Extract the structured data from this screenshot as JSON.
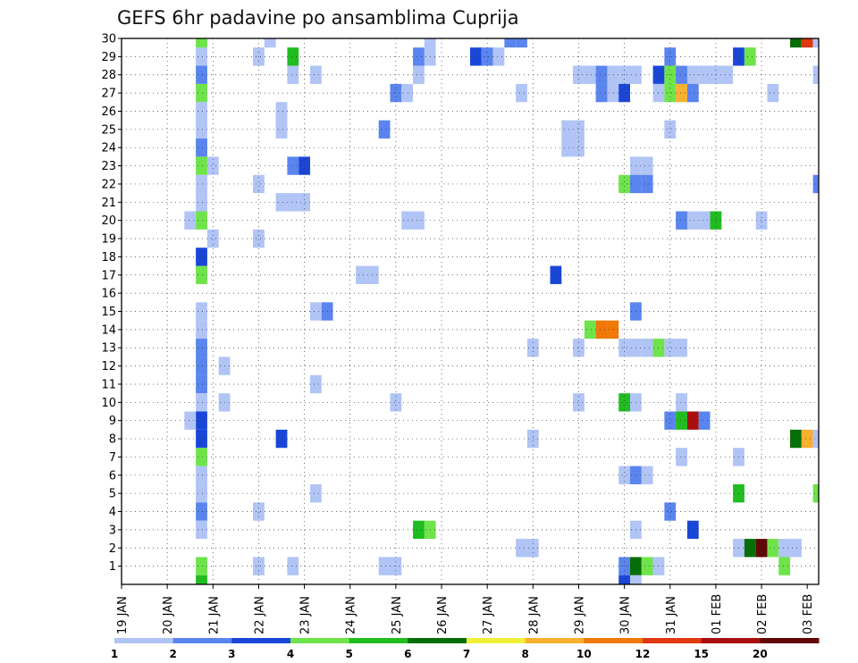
{
  "chart_data": {
    "type": "heatmap",
    "title": "GEFS 6hr padavine po ansamblima Cuprija",
    "xlabel": "",
    "ylabel": "",
    "x_tick_labels": [
      "19 JAN",
      "20 JAN",
      "21 JAN",
      "22 JAN",
      "23 JAN",
      "24 JAN",
      "25 JAN",
      "26 JAN",
      "27 JAN",
      "28 JAN",
      "29 JAN",
      "30 JAN",
      "31 JAN",
      "01 FEB",
      "02 FEB",
      "03 FEB"
    ],
    "y_tick_labels": [
      "1",
      "2",
      "3",
      "4",
      "5",
      "6",
      "7",
      "8",
      "9",
      "10",
      "11",
      "12",
      "13",
      "14",
      "15",
      "16",
      "17",
      "18",
      "19",
      "20",
      "21",
      "22",
      "23",
      "24",
      "25",
      "26",
      "27",
      "28",
      "29",
      "30"
    ],
    "x_unit": "6-hour steps from 19 JAN 00Z (4 per day)",
    "y_range": [
      0,
      30
    ],
    "grid": true,
    "colorbar": {
      "thresholds": [
        "1",
        "2",
        "3",
        "4",
        "5",
        "6",
        "7",
        "8",
        "10",
        "12",
        "15",
        "20"
      ],
      "colors": [
        "#b0c4f5",
        "#5a84ee",
        "#1a46d8",
        "#6ee44a",
        "#20bc20",
        "#066e06",
        "#f0f03a",
        "#f8b030",
        "#f07808",
        "#e03810",
        "#a81010",
        "#600808"
      ]
    },
    "cells": [
      [
        7,
        30,
        3
      ],
      [
        7,
        29,
        0
      ],
      [
        7,
        28,
        1
      ],
      [
        7,
        27,
        3
      ],
      [
        7,
        26,
        0
      ],
      [
        7,
        25,
        0
      ],
      [
        7,
        24,
        1
      ],
      [
        7,
        23,
        3
      ],
      [
        7,
        22,
        0
      ],
      [
        7,
        21,
        0
      ],
      [
        7,
        20,
        3
      ],
      [
        7,
        17,
        3
      ],
      [
        7,
        18,
        2
      ],
      [
        7,
        15,
        0
      ],
      [
        7,
        14,
        0
      ],
      [
        7,
        13,
        1
      ],
      [
        7,
        12,
        1
      ],
      [
        7,
        11,
        1
      ],
      [
        7,
        10,
        0
      ],
      [
        7,
        9,
        2
      ],
      [
        7,
        8,
        2
      ],
      [
        7,
        7,
        3
      ],
      [
        7,
        6,
        0
      ],
      [
        7,
        5,
        0
      ],
      [
        7,
        4,
        1
      ],
      [
        7,
        3,
        0
      ],
      [
        7,
        1,
        3
      ],
      [
        7,
        0,
        4
      ],
      [
        6,
        20,
        0
      ],
      [
        6,
        9,
        0
      ],
      [
        8,
        23,
        0
      ],
      [
        8,
        19,
        0
      ],
      [
        9,
        12,
        0
      ],
      [
        9,
        10,
        0
      ],
      [
        12,
        29,
        0
      ],
      [
        12,
        22,
        0
      ],
      [
        12,
        19,
        0
      ],
      [
        12,
        4,
        0
      ],
      [
        12,
        1,
        0
      ],
      [
        13,
        30,
        0
      ],
      [
        14,
        26,
        0
      ],
      [
        14,
        25,
        0
      ],
      [
        14,
        21,
        0
      ],
      [
        14,
        8,
        2
      ],
      [
        15,
        29,
        4
      ],
      [
        15,
        28,
        0
      ],
      [
        15,
        23,
        1
      ],
      [
        15,
        21,
        0
      ],
      [
        15,
        1,
        0
      ],
      [
        16,
        23,
        2
      ],
      [
        16,
        21,
        0
      ],
      [
        17,
        28,
        0
      ],
      [
        17,
        15,
        0
      ],
      [
        17,
        11,
        0
      ],
      [
        17,
        5,
        0
      ],
      [
        18,
        15,
        1
      ],
      [
        21,
        17,
        0
      ],
      [
        22,
        17,
        0
      ],
      [
        23,
        25,
        1
      ],
      [
        23,
        1,
        0
      ],
      [
        24,
        27,
        1
      ],
      [
        24,
        10,
        0
      ],
      [
        24,
        1,
        0
      ],
      [
        25,
        27,
        0
      ],
      [
        25,
        20,
        0
      ],
      [
        26,
        20,
        0
      ],
      [
        26,
        29,
        1
      ],
      [
        26,
        28,
        0
      ],
      [
        26,
        3,
        4
      ],
      [
        27,
        30,
        0
      ],
      [
        27,
        29,
        0
      ],
      [
        27,
        3,
        3
      ],
      [
        31,
        29,
        2
      ],
      [
        32,
        29,
        1
      ],
      [
        33,
        29,
        0
      ],
      [
        34,
        30,
        1
      ],
      [
        35,
        30,
        1
      ],
      [
        35,
        27,
        0
      ],
      [
        35,
        2,
        0
      ],
      [
        36,
        13,
        0
      ],
      [
        36,
        8,
        0
      ],
      [
        36,
        2,
        0
      ],
      [
        38,
        17,
        2
      ],
      [
        39,
        25,
        0
      ],
      [
        39,
        24,
        0
      ],
      [
        40,
        25,
        0
      ],
      [
        40,
        24,
        0
      ],
      [
        40,
        28,
        0
      ],
      [
        40,
        13,
        0
      ],
      [
        40,
        10,
        0
      ],
      [
        41,
        28,
        0
      ],
      [
        41,
        14,
        3
      ],
      [
        42,
        28,
        1
      ],
      [
        42,
        27,
        1
      ],
      [
        42,
        14,
        8
      ],
      [
        43,
        28,
        0
      ],
      [
        43,
        27,
        0
      ],
      [
        43,
        14,
        8
      ],
      [
        44,
        28,
        0
      ],
      [
        44,
        27,
        2
      ],
      [
        44,
        22,
        3
      ],
      [
        44,
        13,
        0
      ],
      [
        44,
        10,
        4
      ],
      [
        44,
        6,
        0
      ],
      [
        44,
        1,
        1
      ],
      [
        44,
        0,
        2
      ],
      [
        45,
        28,
        0
      ],
      [
        45,
        23,
        0
      ],
      [
        45,
        22,
        1
      ],
      [
        45,
        15,
        1
      ],
      [
        45,
        13,
        0
      ],
      [
        45,
        10,
        0
      ],
      [
        45,
        6,
        1
      ],
      [
        45,
        3,
        0
      ],
      [
        45,
        1,
        5
      ],
      [
        45,
        0,
        0
      ],
      [
        46,
        23,
        0
      ],
      [
        46,
        22,
        1
      ],
      [
        46,
        13,
        0
      ],
      [
        46,
        6,
        0
      ],
      [
        46,
        1,
        3
      ],
      [
        47,
        28,
        2
      ],
      [
        47,
        27,
        0
      ],
      [
        47,
        13,
        3
      ],
      [
        47,
        1,
        0
      ],
      [
        48,
        29,
        1
      ],
      [
        48,
        28,
        3
      ],
      [
        48,
        27,
        3
      ],
      [
        48,
        25,
        0
      ],
      [
        48,
        13,
        0
      ],
      [
        48,
        9,
        1
      ],
      [
        48,
        4,
        1
      ],
      [
        49,
        28,
        1
      ],
      [
        49,
        27,
        7
      ],
      [
        49,
        20,
        1
      ],
      [
        49,
        13,
        0
      ],
      [
        49,
        10,
        0
      ],
      [
        49,
        9,
        4
      ],
      [
        49,
        7,
        0
      ],
      [
        50,
        28,
        0
      ],
      [
        50,
        27,
        1
      ],
      [
        50,
        20,
        0
      ],
      [
        50,
        9,
        10
      ],
      [
        50,
        3,
        2
      ],
      [
        51,
        28,
        0
      ],
      [
        51,
        20,
        0
      ],
      [
        51,
        9,
        1
      ],
      [
        52,
        28,
        0
      ],
      [
        52,
        20,
        4
      ],
      [
        53,
        28,
        0
      ],
      [
        54,
        29,
        2
      ],
      [
        54,
        7,
        0
      ],
      [
        54,
        5,
        4
      ],
      [
        54,
        2,
        0
      ],
      [
        55,
        29,
        3
      ],
      [
        55,
        2,
        5
      ],
      [
        56,
        20,
        0
      ],
      [
        56,
        2,
        11
      ],
      [
        57,
        27,
        0
      ],
      [
        57,
        2,
        3
      ],
      [
        58,
        2,
        0
      ],
      [
        58,
        1,
        3
      ],
      [
        59,
        30,
        5
      ],
      [
        59,
        2,
        0
      ],
      [
        59,
        8,
        5
      ],
      [
        60,
        30,
        9
      ],
      [
        60,
        8,
        7
      ],
      [
        61,
        30,
        0
      ],
      [
        61,
        28,
        0
      ],
      [
        61,
        22,
        1
      ],
      [
        61,
        8,
        0
      ],
      [
        61,
        5,
        3
      ]
    ]
  }
}
